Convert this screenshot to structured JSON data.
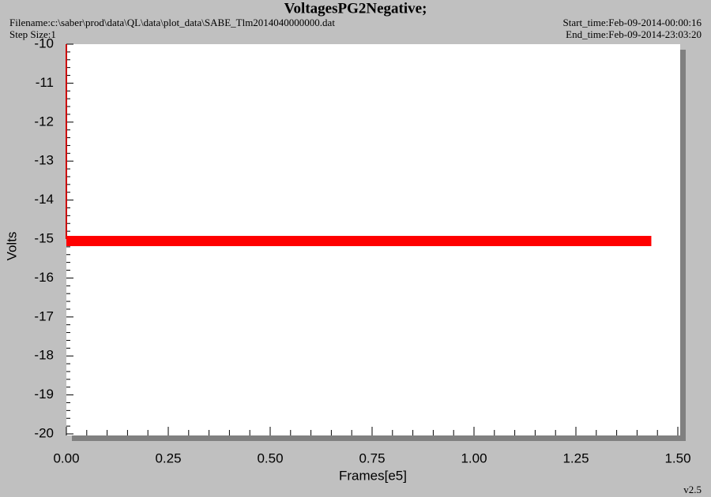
{
  "chart_data": {
    "type": "line",
    "title": "VoltagesPG2Negative;",
    "filename": "Filename:c:\\saber\\prod\\data\\QL\\data\\plot_data\\SABE_Tlm2014040000000.dat",
    "step_size": "Step Size:1",
    "start_time": "Start_time:Feb-09-2014-00:00:16",
    "end_time": "End_time:Feb-09-2014-23:03:20",
    "version": "v2.5",
    "xlabel": "Frames[e5]",
    "ylabel": "Volts",
    "series": [
      {
        "color": "#cc0000",
        "x": [
          0,
          0
        ],
        "values": [
          -10,
          -15
        ]
      },
      {
        "color": "#ff0000",
        "x": [
          0,
          1.435
        ],
        "values": [
          -15.05,
          -15.05
        ]
      }
    ],
    "xlim": [
      0,
      1.5
    ],
    "xticks": [
      {
        "value": 0,
        "label": "0.00"
      },
      0.25,
      {
        "value": 0.5,
        "label": "0.50"
      },
      0.75,
      {
        "value": 1,
        "label": "1.00"
      },
      1.25,
      {
        "value": 1.5,
        "label": "1.50"
      }
    ],
    "ylim": [
      -20,
      -10
    ],
    "yticks": [
      -20,
      -19,
      -18,
      -17,
      -16,
      -15,
      -14,
      -13,
      -12,
      -11,
      -10
    ]
  }
}
